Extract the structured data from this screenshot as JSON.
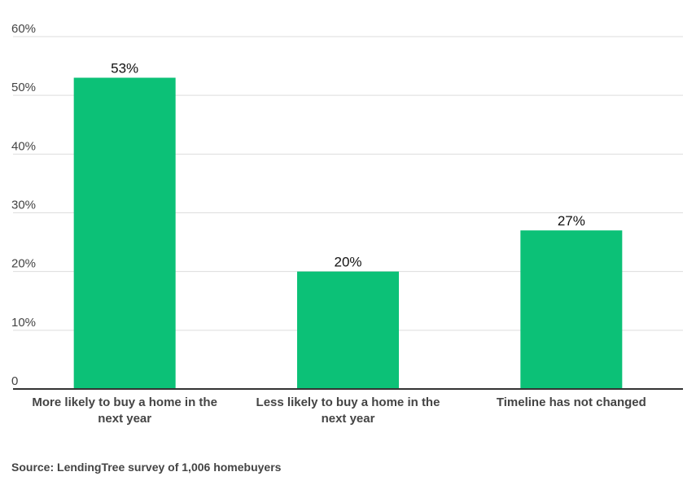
{
  "chart_data": {
    "type": "bar",
    "categories": [
      [
        "More likely to buy a home in the",
        "next year"
      ],
      [
        "Less likely to buy a home in the",
        "next year"
      ],
      [
        "Timeline has not changed"
      ]
    ],
    "values": [
      53,
      20,
      27
    ],
    "data_labels": [
      "53%",
      "20%",
      "27%"
    ],
    "ylim": [
      0,
      60
    ],
    "yticks": [
      0,
      10,
      20,
      30,
      40,
      50,
      60
    ],
    "ytick_labels": [
      "0",
      "10%",
      "20%",
      "30%",
      "40%",
      "50%",
      "60%"
    ],
    "xlabel": "",
    "ylabel": "",
    "grid": true,
    "bar_color": "#0cc177",
    "grid_color": "#dddddd",
    "axis_color": "#333333"
  },
  "footer": {
    "source": "Source: LendingTree survey of 1,006 homebuyers"
  }
}
